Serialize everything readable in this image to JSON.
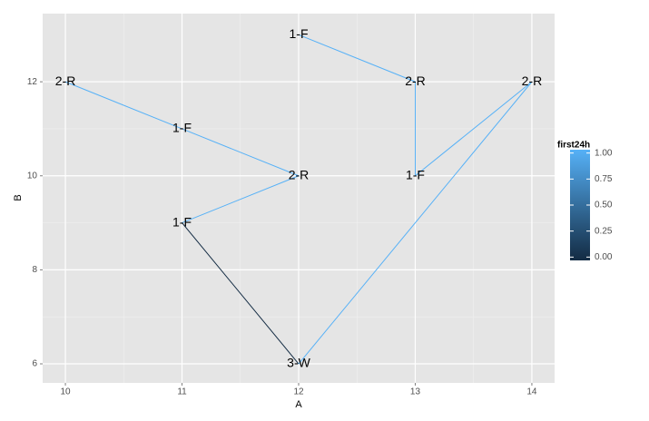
{
  "chart_data": {
    "type": "line",
    "x_label": "A",
    "y_label": "B",
    "x": [
      10,
      11,
      12,
      11,
      12,
      14,
      13,
      13,
      12
    ],
    "y": [
      12,
      11,
      10,
      9,
      6,
      12,
      10,
      12,
      13
    ],
    "point_labels": [
      "2-R",
      "1-F",
      "2-R",
      "1-F",
      "3-W",
      "2-R",
      "1-F",
      "2-R",
      "1-F"
    ],
    "color_values": [
      1,
      1,
      1,
      0,
      1,
      1,
      1,
      1,
      1
    ],
    "color_scale": {
      "title": "first24h",
      "low": "#132B43",
      "high": "#56B1F7",
      "lim": [
        0,
        1
      ],
      "ticks": [
        {
          "value": 0,
          "label": "0.00"
        },
        {
          "value": 0.25,
          "label": "0.25"
        },
        {
          "value": 0.5,
          "label": "0.50"
        },
        {
          "value": 0.75,
          "label": "0.75"
        },
        {
          "value": 1,
          "label": "1.00"
        }
      ]
    },
    "xlim": [
      9.805,
      14.195
    ],
    "ylim": [
      5.595,
      13.45
    ],
    "xticks": [
      10,
      11,
      12,
      13,
      14
    ],
    "yticks": [
      6,
      8,
      10,
      12
    ],
    "grid": true,
    "background": "#E5E5E5"
  }
}
